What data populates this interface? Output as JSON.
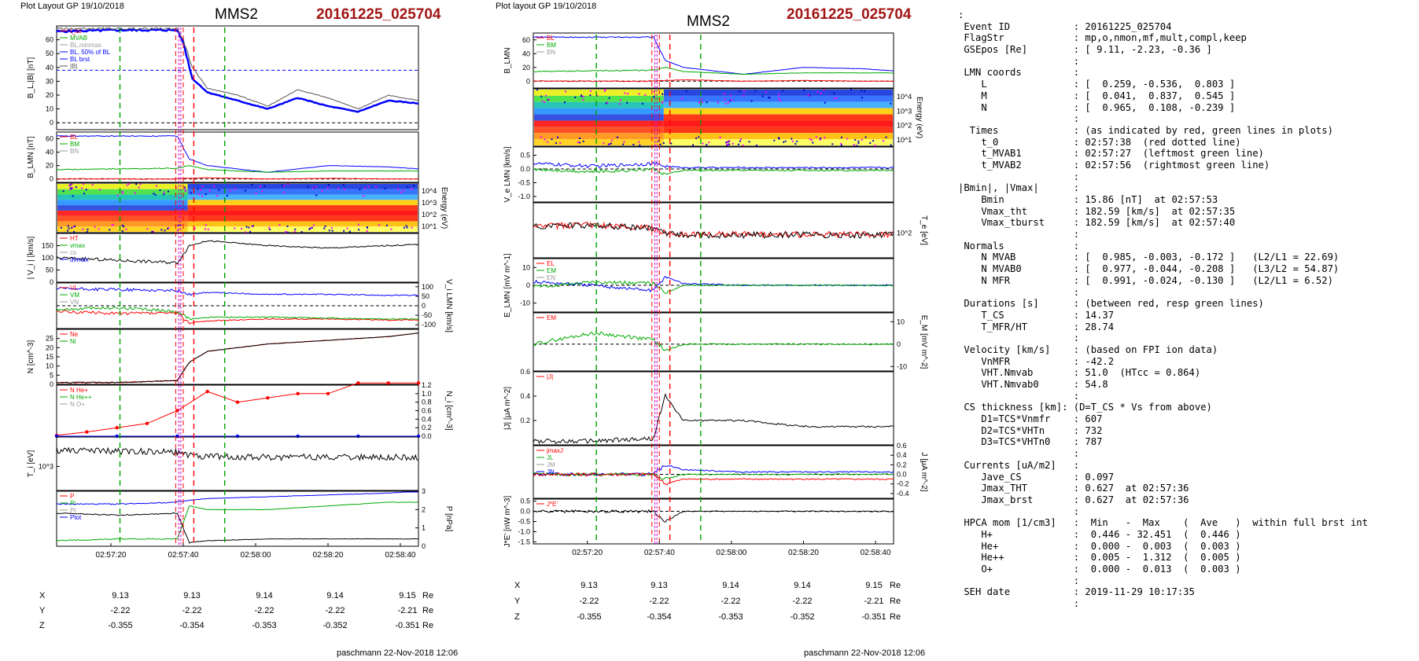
{
  "header": {
    "left_layout": "Plot Layout GP 19/10/2018",
    "right_layout": "Plot layout GP 19/10/2018",
    "spacecraft": "MMS2",
    "event": "20161225_025704"
  },
  "footer": {
    "left": "paschmann 22-Nov-2018 12:06",
    "right": "paschmann 22-Nov-2018 12:06"
  },
  "colors": {
    "event": "#a31515",
    "bl": "#0000ff",
    "bm": "#00aa00",
    "bn": "#ff0000",
    "cs_line": "#ff0000",
    "mvab_line": "#00a000"
  },
  "time_ticks": [
    "02:57:20",
    "02:57:40",
    "02:58:00",
    "02:58:20",
    "02:58:40"
  ],
  "orbit": {
    "left": {
      "X": [
        "9.13",
        "9.13",
        "9.14",
        "9.14",
        "9.15"
      ],
      "Y": [
        "-2.22",
        "-2.22",
        "-2.22",
        "-2.22",
        "-2.21"
      ],
      "Z": [
        "-0.355",
        "-0.354",
        "-0.353",
        "-0.352",
        "-0.351"
      ],
      "unit": "Re"
    },
    "right": {
      "X": [
        "9.13",
        "9.13",
        "9.14",
        "9.14",
        "9.15"
      ],
      "Y": [
        "-2.22",
        "-2.22",
        "-2.22",
        "-2.22",
        "-2.21"
      ],
      "Z": [
        "-0.355",
        "-0.354",
        "-0.353",
        "-0.352",
        "-0.351"
      ],
      "unit": "Re"
    }
  },
  "chart_data": [
    {
      "type": "line",
      "panel": "left-1",
      "ylabel": "B_L,|B| [nT]",
      "ylim": [
        -5,
        70
      ],
      "yticks": [
        "0",
        "10",
        "20",
        "30",
        "40",
        "50",
        "60"
      ],
      "legend": [
        "t_cs",
        "MVAB",
        "BL,minmax",
        "BL, 50% of BL",
        "BL brst",
        "|B|"
      ],
      "x": [
        0,
        20,
        40,
        42,
        45,
        50,
        60,
        70,
        80,
        90,
        100,
        110,
        120
      ],
      "series": [
        {
          "name": "BL brst",
          "values": [
            66,
            67,
            67,
            58,
            32,
            22,
            16,
            10,
            18,
            12,
            8,
            16,
            14
          ]
        },
        {
          "name": "|B|",
          "values": [
            68,
            68,
            68,
            60,
            40,
            25,
            20,
            12,
            24,
            18,
            10,
            20,
            16
          ]
        }
      ],
      "hline_50pct": 38
    },
    {
      "type": "line",
      "panel": "left-2",
      "ylabel": "B_LMN [nT]",
      "ylim": [
        -5,
        70
      ],
      "yticks": [
        "0",
        "20",
        "40",
        "60"
      ],
      "legend": [
        "BL",
        "BM",
        "BN"
      ],
      "x": [
        0,
        20,
        40,
        44,
        50,
        70,
        90,
        110,
        120
      ],
      "series": [
        {
          "name": "BL",
          "values": [
            64,
            64,
            64,
            30,
            20,
            10,
            20,
            18,
            15
          ]
        },
        {
          "name": "BM",
          "values": [
            14,
            15,
            16,
            20,
            14,
            10,
            12,
            12,
            12
          ]
        },
        {
          "name": "BN",
          "values": [
            0,
            0,
            0,
            1,
            2,
            0,
            1,
            0,
            0
          ]
        }
      ]
    },
    {
      "type": "heatmap",
      "panel": "left-3",
      "ylabel": "Energy (eV)",
      "yticks": [
        "10^4",
        "10^3",
        "10^2",
        "10^1"
      ]
    },
    {
      "type": "line",
      "panel": "left-4",
      "ylabel": "| V_i | [km/s]",
      "ylim": [
        0,
        200
      ],
      "yticks": [
        "0",
        "50",
        "100",
        "150"
      ],
      "legend": [
        "HT",
        "vmax",
        "cs",
        "dvmax"
      ],
      "x": [
        0,
        20,
        40,
        44,
        50,
        70,
        90,
        110,
        120
      ],
      "series": [
        {
          "name": "|V_i|",
          "values": [
            100,
            90,
            80,
            150,
            170,
            150,
            140,
            150,
            155
          ]
        }
      ]
    },
    {
      "type": "line",
      "panel": "left-5",
      "ylabel": "V_i LMN [km/s]",
      "ylim": [
        -120,
        120
      ],
      "yticks": [
        "100",
        "50",
        "0",
        "-50",
        "-100"
      ],
      "legend": [
        "VL",
        "VM",
        "VN"
      ],
      "x": [
        0,
        20,
        40,
        44,
        50,
        70,
        90,
        110,
        120
      ],
      "series": [
        {
          "name": "VL",
          "values": [
            90,
            85,
            80,
            60,
            70,
            60,
            60,
            55,
            55
          ]
        },
        {
          "name": "VM",
          "values": [
            -30,
            -40,
            -40,
            -90,
            -80,
            -70,
            -70,
            -75,
            -75
          ]
        },
        {
          "name": "VN",
          "values": [
            -20,
            -10,
            -30,
            -70,
            -60,
            -60,
            -65,
            -70,
            -70
          ]
        }
      ]
    },
    {
      "type": "line",
      "panel": "left-6",
      "ylabel": "N [cm^-3]",
      "ylim": [
        0,
        30
      ],
      "yticks": [
        "0",
        "5",
        "10",
        "15",
        "20",
        "25"
      ],
      "legend": [
        "Ne",
        "Ni"
      ],
      "x": [
        0,
        20,
        40,
        44,
        50,
        70,
        90,
        110,
        120
      ],
      "series": [
        {
          "name": "Ne",
          "values": [
            1,
            1,
            2,
            12,
            18,
            22,
            24,
            26,
            28
          ]
        },
        {
          "name": "Ni",
          "values": [
            1,
            1,
            2,
            12,
            18,
            22,
            24,
            26,
            28
          ]
        }
      ]
    },
    {
      "type": "line",
      "panel": "left-7",
      "ylabel": "N_i [cm^-3]",
      "ylim": [
        0,
        1.2
      ],
      "yticks": [
        "0.0",
        "0.2",
        "0.4",
        "0.6",
        "0.8",
        "1.0",
        "1.2"
      ],
      "legend": [
        "N He+",
        "N He++",
        "N O+"
      ],
      "x": [
        0,
        10,
        20,
        30,
        40,
        50,
        60,
        70,
        80,
        90,
        100,
        110,
        120
      ],
      "series": [
        {
          "name": "N He++",
          "values": [
            0.02,
            0.1,
            0.2,
            0.3,
            0.6,
            1.05,
            0.8,
            0.9,
            1.0,
            1.0,
            1.25,
            1.25,
            1.25
          ]
        },
        {
          "name": "N He+",
          "values": [
            0.0,
            0.0,
            0.0,
            0.0,
            0.0,
            0.0,
            0.0,
            0.0,
            0.0,
            0.0,
            0.0,
            0.0,
            0.0
          ]
        }
      ]
    },
    {
      "type": "line",
      "panel": "left-8",
      "ylabel": "T_i [eV]",
      "yticks": [
        "10^3"
      ],
      "x": [
        0,
        20,
        40,
        44,
        50,
        70,
        90,
        110,
        120
      ],
      "series": [
        {
          "name": "T_i",
          "values": [
            2000,
            1800,
            1500,
            900,
            700,
            650,
            650,
            640,
            640
          ]
        }
      ]
    },
    {
      "type": "line",
      "panel": "left-9",
      "ylabel": "P [nPa]",
      "ylim": [
        0,
        3
      ],
      "yticks": [
        "0",
        "1",
        "2",
        "3"
      ],
      "legend": [
        "P",
        "Pi",
        "Pt",
        "Ptot"
      ],
      "x": [
        0,
        20,
        40,
        44,
        50,
        70,
        90,
        110,
        120
      ],
      "series": [
        {
          "name": "Ptot",
          "values": [
            2.3,
            2.3,
            2.4,
            2.5,
            2.6,
            2.7,
            2.8,
            2.9,
            3.0
          ]
        },
        {
          "name": "P",
          "values": [
            1.8,
            1.7,
            1.8,
            0.2,
            0.3,
            0.4,
            0.4,
            0.4,
            0.4
          ]
        },
        {
          "name": "Pi",
          "values": [
            0.3,
            0.4,
            0.4,
            2.2,
            2.0,
            2.0,
            2.2,
            2.4,
            2.4
          ]
        }
      ]
    },
    {
      "type": "line",
      "panel": "right-1",
      "ylabel": "B_LMN",
      "ylim": [
        -10,
        70
      ],
      "yticks": [
        "0",
        "20",
        "40",
        "60"
      ],
      "legend": [
        "BL",
        "BM",
        "BN"
      ],
      "x": [
        0,
        20,
        40,
        44,
        50,
        70,
        90,
        110,
        120
      ],
      "series": [
        {
          "name": "BL",
          "values": [
            64,
            64,
            64,
            30,
            20,
            10,
            20,
            18,
            15
          ]
        },
        {
          "name": "BM",
          "values": [
            14,
            15,
            16,
            20,
            14,
            10,
            12,
            12,
            12
          ]
        },
        {
          "name": "BN",
          "values": [
            0,
            0,
            0,
            1,
            2,
            0,
            1,
            0,
            0
          ]
        }
      ]
    },
    {
      "type": "heatmap",
      "panel": "right-2",
      "ylabel": "Energy (eV)",
      "yticks": [
        "10^4",
        "10^3",
        "10^2",
        "10^1"
      ]
    },
    {
      "type": "line",
      "panel": "right-3",
      "ylabel": "V_e LMN [km/s]",
      "ylim": [
        -1.2,
        0.8
      ],
      "yticks": [
        "0.5",
        "0.0",
        "-0.5",
        "-1.0"
      ],
      "x": [
        0,
        20,
        40,
        44,
        50,
        70,
        90,
        110,
        120
      ],
      "series": [
        {
          "name": "VL",
          "values": [
            0.2,
            0.1,
            0.2,
            0.1,
            0.05,
            0.05,
            0.05,
            0.05,
            0.05
          ]
        },
        {
          "name": "VN",
          "values": [
            0.0,
            -0.1,
            0.0,
            -0.2,
            -0.05,
            -0.05,
            -0.05,
            -0.05,
            -0.05
          ]
        }
      ]
    },
    {
      "type": "line",
      "panel": "right-4",
      "ylabel": "T_e [eV]",
      "yticks": [
        "10^2"
      ],
      "x": [
        0,
        20,
        40,
        44,
        50,
        70,
        90,
        110,
        120
      ],
      "series": [
        {
          "name": "T",
          "values": [
            400,
            500,
            300,
            120,
            110,
            110,
            110,
            110,
            110
          ]
        },
        {
          "name": "T_perp",
          "values": [
            380,
            480,
            290,
            110,
            100,
            100,
            100,
            100,
            100
          ]
        }
      ]
    },
    {
      "type": "line",
      "panel": "right-5",
      "ylabel": "E_LMN [mV m^-1]",
      "ylim": [
        -15,
        15
      ],
      "yticks": [
        "10",
        "0",
        "-10"
      ],
      "legend": [
        "EL",
        "EM",
        "EN"
      ],
      "x": [
        0,
        20,
        40,
        44,
        50,
        70,
        90,
        110,
        120
      ],
      "series": [
        {
          "name": "EL",
          "values": [
            2,
            0,
            -3,
            5,
            1,
            0,
            0,
            0,
            0
          ]
        },
        {
          "name": "EM",
          "values": [
            -1,
            2,
            1,
            -4,
            0,
            0,
            0,
            0,
            0
          ]
        }
      ]
    },
    {
      "type": "line",
      "panel": "right-6",
      "ylabel": "E_M [mV m^-2]",
      "ylim": [
        -12,
        14
      ],
      "yticks": [
        "10",
        "0",
        "-10"
      ],
      "legend": [
        "EM"
      ],
      "x": [
        0,
        20,
        40,
        44,
        50,
        70,
        90,
        110,
        120
      ],
      "series": [
        {
          "name": "EM",
          "values": [
            0,
            5,
            2,
            -3,
            0,
            0,
            0,
            0,
            0
          ]
        }
      ]
    },
    {
      "type": "line",
      "panel": "right-7",
      "ylabel": "|J| [μA m^-2]",
      "ylim": [
        0,
        0.6
      ],
      "yticks": [
        "0.2",
        "0.4",
        "0.6"
      ],
      "legend": [
        "|J|"
      ],
      "x": [
        0,
        20,
        40,
        44,
        50,
        70,
        90,
        110,
        120
      ],
      "series": [
        {
          "name": "|J|",
          "values": [
            0.03,
            0.03,
            0.05,
            0.4,
            0.2,
            0.2,
            0.15,
            0.15,
            0.15
          ]
        }
      ]
    },
    {
      "type": "line",
      "panel": "right-8",
      "ylabel": "J [μA m^-2]",
      "ylim": [
        -0.5,
        0.6
      ],
      "yticks": [
        "0.6",
        "0.4",
        "0.2",
        "0.0",
        "-0.2",
        "-0.4"
      ],
      "legend": [
        "jmaxJ",
        "JL",
        "JM",
        "JN"
      ],
      "x": [
        0,
        20,
        40,
        44,
        50,
        70,
        90,
        110,
        120
      ],
      "series": [
        {
          "name": "JL",
          "values": [
            0,
            0,
            0,
            0.2,
            0.1,
            0.05,
            0.05,
            0.05,
            0.05
          ]
        },
        {
          "name": "JM",
          "values": [
            0,
            0,
            0,
            -0.1,
            0,
            0,
            0,
            0,
            0
          ]
        },
        {
          "name": "JN",
          "values": [
            0,
            0,
            0,
            -0.2,
            -0.1,
            -0.1,
            -0.1,
            -0.1,
            -0.1
          ]
        }
      ]
    },
    {
      "type": "line",
      "panel": "right-9",
      "ylabel": "J*E' [nW m^-3]",
      "ylim": [
        -1.6,
        0.6
      ],
      "yticks": [
        "0.5",
        "0.0",
        "-0.5",
        "-1.0",
        "-1.5"
      ],
      "legend": [
        "J*E'"
      ],
      "x": [
        0,
        20,
        40,
        44,
        50,
        70,
        90,
        110,
        120
      ],
      "series": [
        {
          "name": "J*E'",
          "values": [
            0,
            0,
            0,
            -0.5,
            0,
            0,
            0,
            0,
            0
          ]
        }
      ]
    }
  ],
  "info_lines": [
    ":",
    " Event ID           : 20161225_025704",
    " FlagStr            : mp,o,nmon,mf,mult,compl,keep",
    " GSEpos [Re]        : [ 9.11, -2.23, -0.36 ]",
    "                    :",
    " LMN coords         :",
    "    L               : [  0.259, -0.536,  0.803 ]",
    "    M               : [  0.041,  0.837,  0.545 ]",
    "    N               : [  0.965,  0.108, -0.239 ]",
    "                    :",
    "  Times             : (as indicated by red, green lines in plots)",
    "    t_0             : 02:57:38  (red dotted line)",
    "    t_MVAB1         : 02:57:27  (leftmost green line)",
    "    t_MVAB2         : 02:57:56  (rightmost green line)",
    "                    :",
    "|Bmin|, |Vmax|      :",
    "    Bmin            : 15.86 [nT]  at 02:57:53",
    "    Vmax_tht        : 182.59 [km/s]  at 02:57:35",
    "    Vmax_tburst     : 182.59 [km/s]  at 02:57:40",
    "                    :",
    " Normals            :",
    "    N MVAB          : [  0.985, -0.003, -0.172 ]   (L2/L1 = 22.69)",
    "    N MVAB0         : [  0.977, -0.044, -0.208 ]   (L3/L2 = 54.87)",
    "    N MFR           : [  0.991, -0.024, -0.130 ]   (L2/L1 = 6.52)",
    "                    :",
    " Durations [s]      : (between red, resp green lines)",
    "    T_CS            : 14.37",
    "    T_MFR/HT        : 28.74",
    "                    :",
    " Velocity [km/s]    : (based on FPI ion data)",
    "    VnMFR           : -42.2",
    "    VHT.Nmvab       : 51.0  (HTcc = 0.864)",
    "    VHT.Nmvab0      : 54.8",
    "                    :",
    " CS thickness [km]: (D=T_CS * Vs from above)",
    "    D1=TCS*Vnmfr    : 607",
    "    D2=TCS*VHTn     : 732",
    "    D3=TCS*VHTn0    : 787",
    "                    :",
    " Currents [uA/m2]   :",
    "    Jave_CS         : 0.097",
    "    Jmax_THT        : 0.627  at 02:57:36",
    "    Jmax_brst       : 0.627  at 02:57:36",
    "                    :",
    " HPCA mom [1/cm3]   :  Min   -  Max    (  Ave   )  within full brst int",
    "    H+              :  0.446 - 32.451  (  0.446 )",
    "    He+             :  0.000 -  0.003  (  0.003 )",
    "    He++            :  0.005 -  1.312  (  0.005 )",
    "    O+              :  0.000 -  0.013  (  0.003 )",
    "                    :",
    " SEH date           : 2019-11-29 10:17:35",
    "                    :"
  ]
}
